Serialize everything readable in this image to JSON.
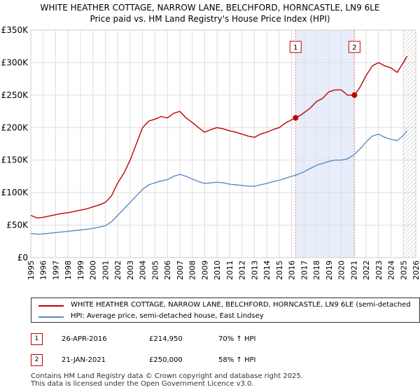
{
  "title_line1": "WHITE HEATHER COTTAGE, NARROW LANE, BELCHFORD, HORNCASTLE, LN9 6LE",
  "title_line2": "Price paid vs. HM Land Registry's House Price Index (HPI)",
  "colors": {
    "property": "#c00000",
    "hpi": "#5b8bc9",
    "shade": "#dde6f8",
    "grid": "#dddddd",
    "marker_line": "#e08080",
    "future_hatch": "#888888"
  },
  "legend": {
    "property_label": "WHITE HEATHER COTTAGE, NARROW LANE, BELCHFORD, HORNCASTLE, LN9 6LE (semi-detached",
    "hpi_label": "HPI: Average price, semi-detached house, East Lindsey"
  },
  "sales": [
    {
      "num": "1",
      "date": "26-APR-2016",
      "price": "£214,950",
      "hpi": "70% ↑ HPI"
    },
    {
      "num": "2",
      "date": "21-JAN-2021",
      "price": "£250,000",
      "hpi": "58% ↑ HPI"
    }
  ],
  "footer": {
    "line1": "Contains HM Land Registry data © Crown copyright and database right 2025.",
    "line2": "This data is licensed under the Open Government Licence v3.0."
  },
  "chart_data": {
    "type": "line",
    "xlim": [
      1995,
      2026
    ],
    "ylim": [
      0,
      350000
    ],
    "x_ticks": [
      1995,
      1996,
      1997,
      1998,
      1999,
      2000,
      2001,
      2002,
      2003,
      2004,
      2005,
      2006,
      2007,
      2008,
      2009,
      2010,
      2011,
      2012,
      2013,
      2014,
      2015,
      2016,
      2017,
      2018,
      2019,
      2020,
      2021,
      2022,
      2023,
      2024,
      2025,
      2026
    ],
    "y_ticks": [
      0,
      50000,
      100000,
      150000,
      200000,
      250000,
      300000,
      350000
    ],
    "y_tick_labels": [
      "£0",
      "£50K",
      "£100K",
      "£150K",
      "£200K",
      "£250K",
      "£300K",
      "£350K"
    ],
    "shaded_range": [
      2016.32,
      2021.06
    ],
    "future_from": 2025.0,
    "series": [
      {
        "name": "property",
        "x": [
          1995.0,
          1995.5,
          1996.0,
          1996.5,
          1997.0,
          1997.5,
          1998.0,
          1998.5,
          1999.0,
          1999.5,
          2000.0,
          2000.5,
          2001.0,
          2001.5,
          2002.0,
          2002.5,
          2003.0,
          2003.5,
          2004.0,
          2004.5,
          2005.0,
          2005.5,
          2006.0,
          2006.5,
          2007.0,
          2007.5,
          2008.0,
          2008.5,
          2009.0,
          2009.5,
          2010.0,
          2010.5,
          2011.0,
          2011.5,
          2012.0,
          2012.5,
          2013.0,
          2013.5,
          2014.0,
          2014.5,
          2015.0,
          2015.5,
          2016.0,
          2016.32,
          2016.8,
          2017.5,
          2018.0,
          2018.5,
          2019.0,
          2019.5,
          2020.0,
          2020.5,
          2021.06,
          2021.5,
          2022.0,
          2022.5,
          2023.0,
          2023.5,
          2024.0,
          2024.5,
          2025.0,
          2025.3
        ],
        "y": [
          65000,
          61000,
          62000,
          64000,
          66000,
          68000,
          69000,
          71000,
          73000,
          75000,
          78000,
          81000,
          85000,
          95000,
          115000,
          130000,
          150000,
          175000,
          200000,
          210000,
          213000,
          217000,
          215000,
          222000,
          225000,
          215000,
          208000,
          200000,
          193000,
          197000,
          200000,
          198000,
          195000,
          193000,
          190000,
          187000,
          185000,
          190000,
          193000,
          197000,
          200000,
          207000,
          212000,
          214950,
          220000,
          230000,
          240000,
          245000,
          255000,
          258000,
          258000,
          250000,
          250000,
          262000,
          280000,
          295000,
          300000,
          295000,
          292000,
          285000,
          300000,
          310000
        ]
      },
      {
        "name": "hpi",
        "x": [
          1995.0,
          1995.5,
          1996.0,
          1996.5,
          1997.0,
          1997.5,
          1998.0,
          1998.5,
          1999.0,
          1999.5,
          2000.0,
          2000.5,
          2001.0,
          2001.5,
          2002.0,
          2002.5,
          2003.0,
          2003.5,
          2004.0,
          2004.5,
          2005.0,
          2005.5,
          2006.0,
          2006.5,
          2007.0,
          2007.5,
          2008.0,
          2008.5,
          2009.0,
          2009.5,
          2010.0,
          2010.5,
          2011.0,
          2011.5,
          2012.0,
          2012.5,
          2013.0,
          2013.5,
          2014.0,
          2014.5,
          2015.0,
          2015.5,
          2016.0,
          2016.5,
          2017.0,
          2017.5,
          2018.0,
          2018.5,
          2019.0,
          2019.5,
          2020.0,
          2020.5,
          2021.0,
          2021.5,
          2022.0,
          2022.5,
          2023.0,
          2023.5,
          2024.0,
          2024.5,
          2025.0,
          2025.3
        ],
        "y": [
          37000,
          36000,
          36500,
          37500,
          38500,
          39500,
          40500,
          41500,
          42500,
          43500,
          45000,
          47000,
          49000,
          55000,
          65000,
          75000,
          85000,
          95000,
          105000,
          112000,
          115000,
          118000,
          120000,
          125000,
          128000,
          125000,
          121000,
          117000,
          114000,
          115000,
          116000,
          115000,
          113000,
          112000,
          111000,
          110000,
          110000,
          112000,
          114000,
          117000,
          119000,
          122000,
          125000,
          128000,
          132000,
          137000,
          142000,
          145000,
          148000,
          150000,
          150000,
          152000,
          158000,
          167000,
          178000,
          187000,
          190000,
          185000,
          182000,
          180000,
          188000,
          195000
        ]
      }
    ],
    "markers": [
      {
        "label": "1",
        "x": 2016.32,
        "y": 214950
      },
      {
        "label": "2",
        "x": 2021.06,
        "y": 250000
      }
    ]
  }
}
